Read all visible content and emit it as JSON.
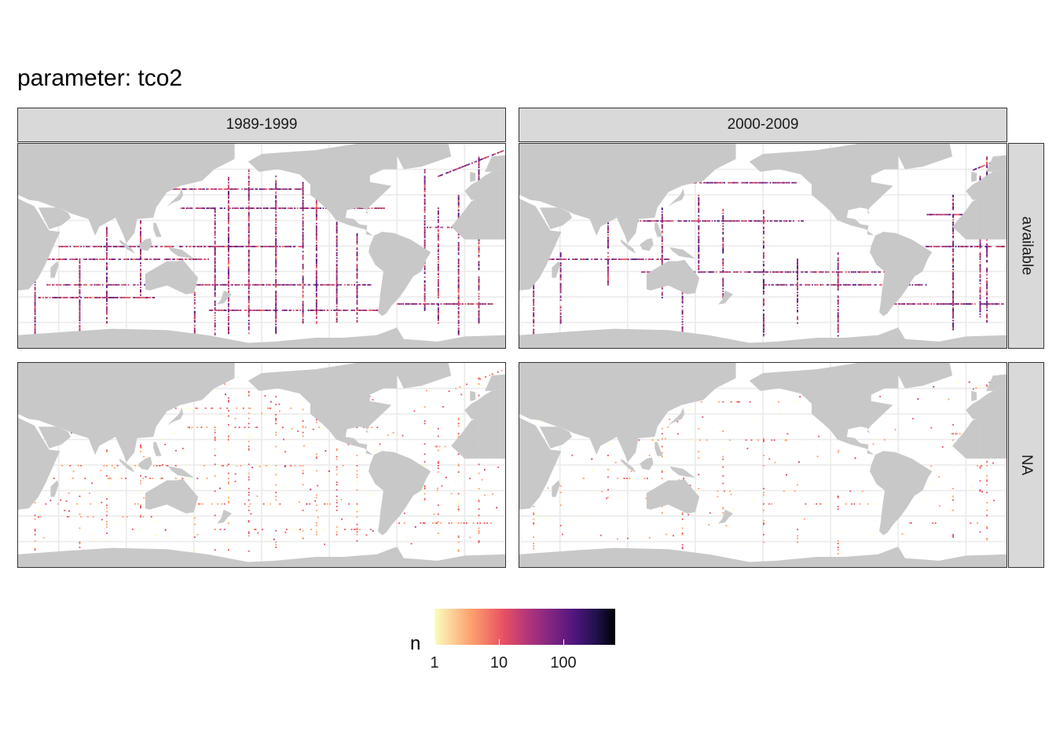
{
  "title": "parameter: tco2",
  "facets": {
    "columns": [
      "1989-1999",
      "2000-2009"
    ],
    "rows": [
      "available",
      "NA"
    ]
  },
  "legend": {
    "title": "n",
    "scale": "log10",
    "ticks": [
      "1",
      "10",
      "100"
    ],
    "range": [
      1,
      600
    ],
    "palette": [
      "#fcfdbf",
      "#fd9d6c",
      "#e75263",
      "#b5367a",
      "#822681",
      "#4e157e",
      "#1f1147",
      "#000004"
    ]
  },
  "colors": {
    "land": "#c8c8c8",
    "ocean": "#ffffff",
    "grid": "#ebebeb",
    "strip": "#d9d9d9"
  },
  "map": {
    "projection": "longitude 20E to 380E, latitude 80S to 80N",
    "gridlines_lon": [
      50,
      100,
      150,
      200,
      250,
      300,
      350
    ],
    "gridlines_lat": [
      -60,
      -40,
      -20,
      0,
      20,
      40,
      60
    ]
  }
}
